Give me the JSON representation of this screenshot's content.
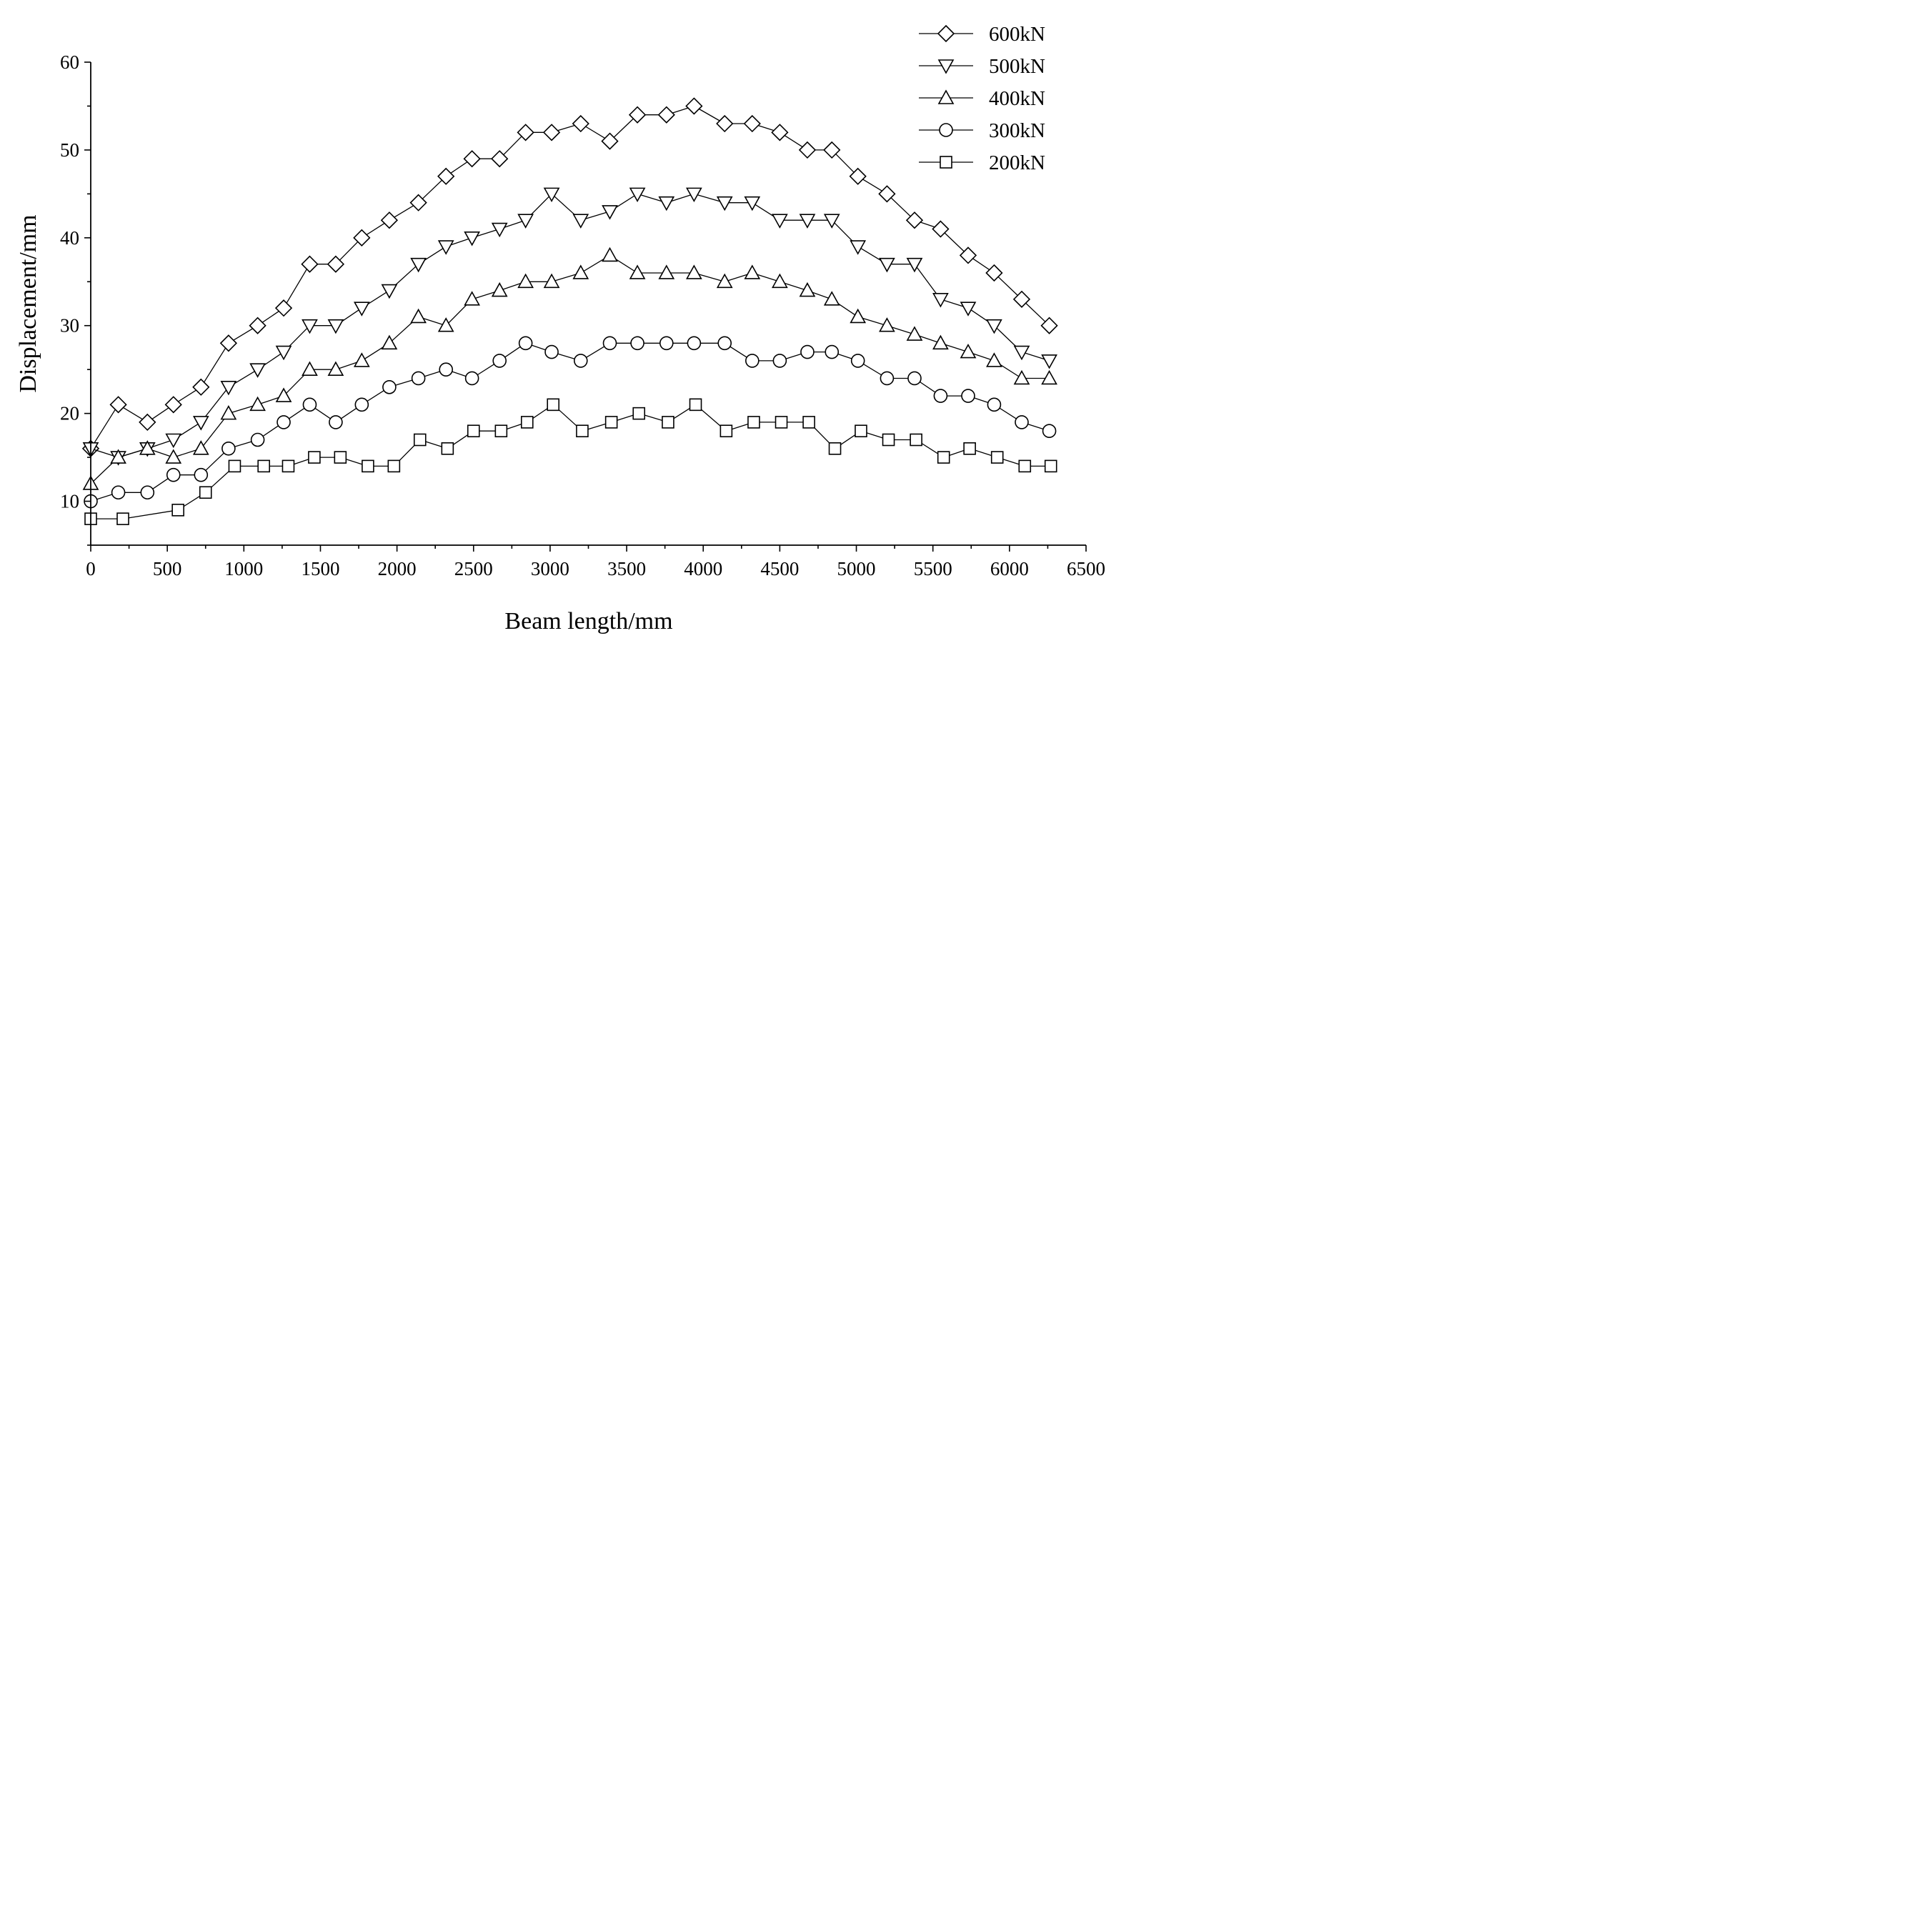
{
  "chart_data": {
    "type": "line",
    "title": "",
    "xlabel": "Beam length/mm",
    "ylabel": "Displacement/mm",
    "xlim": [
      0,
      6500
    ],
    "ylim": [
      5,
      60
    ],
    "x_ticks": [
      0,
      500,
      1000,
      1500,
      2000,
      2500,
      3000,
      3500,
      4000,
      4500,
      5000,
      5500,
      6000,
      6500
    ],
    "y_ticks": [
      10,
      20,
      30,
      40,
      50,
      60
    ],
    "grid": false,
    "legend_position": "top-right",
    "series": [
      {
        "name": "600kN",
        "marker": "diamond",
        "x": [
          0,
          180,
          370,
          540,
          720,
          900,
          1090,
          1260,
          1430,
          1600,
          1770,
          1950,
          2140,
          2320,
          2490,
          2670,
          2840,
          3010,
          3200,
          3390,
          3570,
          3760,
          3940,
          4140,
          4320,
          4500,
          4680,
          4840,
          5010,
          5200,
          5380,
          5550,
          5730,
          5900,
          6080,
          6260
        ],
        "y": [
          16,
          21,
          19,
          21,
          23,
          28,
          30,
          32,
          37,
          37,
          40,
          42,
          44,
          47,
          49,
          49,
          52,
          52,
          53,
          51,
          54,
          54,
          55,
          53,
          53,
          52,
          50,
          50,
          47,
          45,
          42,
          41,
          38,
          36,
          33,
          30
        ]
      },
      {
        "name": "500kN",
        "marker": "triangle-down",
        "x": [
          0,
          180,
          370,
          540,
          720,
          900,
          1090,
          1260,
          1430,
          1600,
          1770,
          1950,
          2140,
          2320,
          2490,
          2670,
          2840,
          3010,
          3200,
          3390,
          3570,
          3760,
          3940,
          4140,
          4320,
          4500,
          4680,
          4840,
          5010,
          5200,
          5380,
          5550,
          5730,
          5900,
          6080,
          6260
        ],
        "y": [
          16,
          15,
          16,
          17,
          19,
          23,
          25,
          27,
          30,
          30,
          32,
          34,
          37,
          39,
          40,
          41,
          42,
          45,
          42,
          43,
          45,
          44,
          45,
          44,
          44,
          42,
          42,
          42,
          39,
          37,
          37,
          33,
          32,
          30,
          27,
          26
        ]
      },
      {
        "name": "400kN",
        "marker": "triangle-up",
        "x": [
          0,
          180,
          370,
          540,
          720,
          900,
          1090,
          1260,
          1430,
          1600,
          1770,
          1950,
          2140,
          2320,
          2490,
          2670,
          2840,
          3010,
          3200,
          3390,
          3570,
          3760,
          3940,
          4140,
          4320,
          4500,
          4680,
          4840,
          5010,
          5200,
          5380,
          5550,
          5730,
          5900,
          6080,
          6260
        ],
        "y": [
          12,
          15,
          16,
          15,
          16,
          20,
          21,
          22,
          25,
          25,
          26,
          28,
          31,
          30,
          33,
          34,
          35,
          35,
          36,
          38,
          36,
          36,
          36,
          35,
          36,
          35,
          34,
          33,
          31,
          30,
          29,
          28,
          27,
          26,
          24,
          24
        ]
      },
      {
        "name": "300kN",
        "marker": "circle",
        "x": [
          0,
          180,
          370,
          540,
          720,
          900,
          1090,
          1260,
          1430,
          1600,
          1770,
          1950,
          2140,
          2320,
          2490,
          2670,
          2840,
          3010,
          3200,
          3390,
          3570,
          3760,
          3940,
          4140,
          4320,
          4500,
          4680,
          4840,
          5010,
          5200,
          5380,
          5550,
          5730,
          5900,
          6080,
          6260
        ],
        "y": [
          10,
          11,
          11,
          13,
          13,
          16,
          17,
          19,
          21,
          19,
          21,
          23,
          24,
          25,
          24,
          26,
          28,
          27,
          26,
          28,
          28,
          28,
          28,
          28,
          26,
          26,
          27,
          27,
          26,
          24,
          24,
          22,
          22,
          21,
          19,
          18
        ]
      },
      {
        "name": "200kN",
        "marker": "square",
        "x": [
          0,
          210,
          570,
          750,
          940,
          1130,
          1290,
          1460,
          1630,
          1810,
          1980,
          2150,
          2330,
          2500,
          2680,
          2850,
          3020,
          3210,
          3400,
          3580,
          3770,
          3950,
          4150,
          4330,
          4510,
          4690,
          4860,
          5030,
          5210,
          5390,
          5570,
          5740,
          5920,
          6100,
          6270
        ],
        "y": [
          8,
          8,
          9,
          11,
          14,
          14,
          14,
          15,
          15,
          14,
          14,
          17,
          16,
          18,
          18,
          19,
          21,
          18,
          19,
          20,
          19,
          21,
          18,
          19,
          19,
          19,
          16,
          18,
          17,
          17,
          15,
          16,
          15,
          14,
          14
        ]
      }
    ]
  }
}
